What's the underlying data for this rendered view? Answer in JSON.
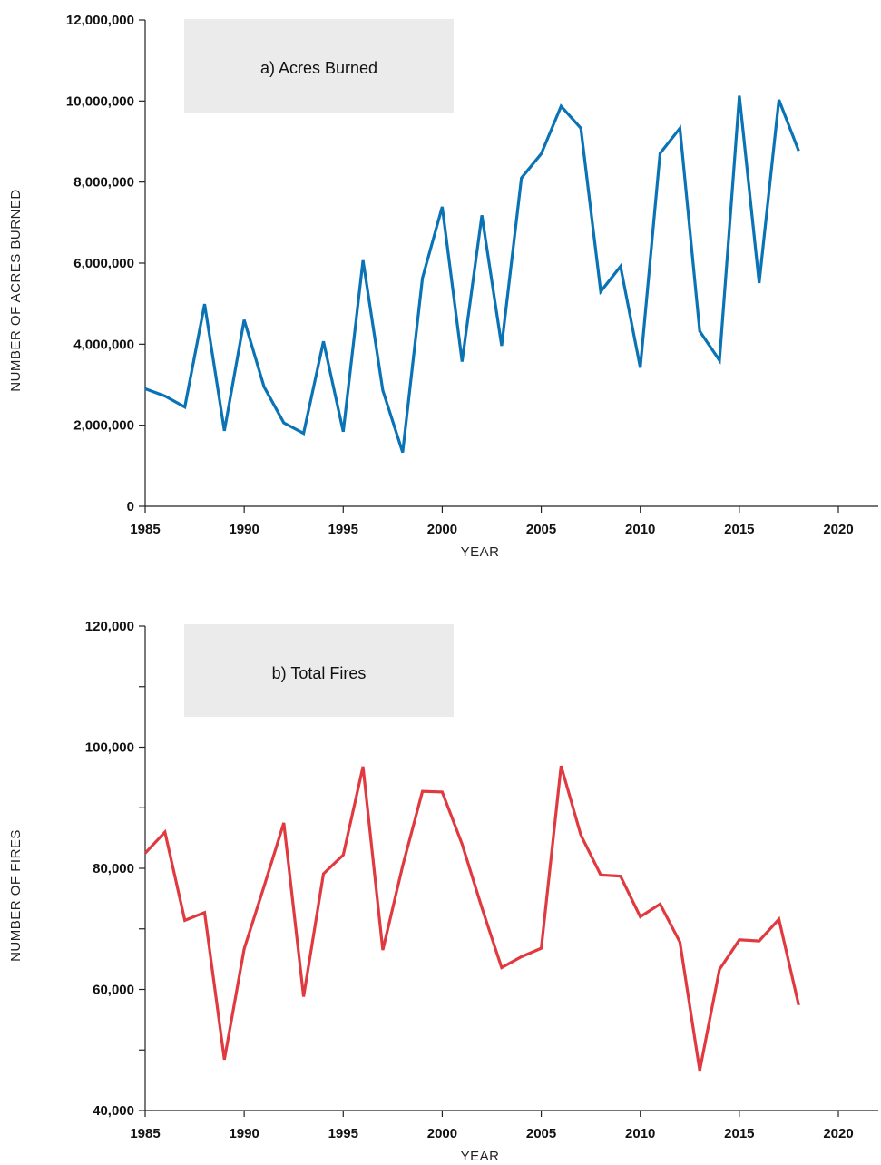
{
  "chart_data": [
    {
      "type": "line",
      "title": "a) Acres Burned",
      "xlabel": "YEAR",
      "ylabel": "NUMBER OF ACRES BURNED",
      "xlim": [
        1985,
        2020
      ],
      "ylim": [
        0,
        12000000
      ],
      "xticks": [
        1985,
        1990,
        1995,
        2000,
        2005,
        2010,
        2015,
        2020
      ],
      "xtick_labels": [
        "1985",
        "1990",
        "1995",
        "2000",
        "2005",
        "2010",
        "2015",
        "2020"
      ],
      "yticks": [
        0,
        2000000,
        4000000,
        6000000,
        8000000,
        10000000,
        12000000
      ],
      "ytick_labels": [
        "0",
        "2,000,000",
        "4,000,000",
        "6,000,000",
        "8,000,000",
        "10,000,000",
        "12,000,000"
      ],
      "grid": false,
      "color": "#0A73B5",
      "series": [
        {
          "x": [
            1985,
            1986,
            1987,
            1988,
            1989,
            1990,
            1991,
            1992,
            1993,
            1994,
            1995,
            1996,
            1997,
            1998,
            1999,
            2000,
            2001,
            2002,
            2003,
            2004,
            2005,
            2006,
            2007,
            2008,
            2009,
            2010,
            2011,
            2012,
            2013,
            2014,
            2015,
            2016,
            2017,
            2018
          ],
          "values": [
            2900000,
            2720000,
            2450000,
            4990000,
            1860000,
            4600000,
            2950000,
            2060000,
            1800000,
            4070000,
            1840000,
            6070000,
            2860000,
            1330000,
            5630000,
            7390000,
            3570000,
            7180000,
            3960000,
            8100000,
            8700000,
            9870000,
            9330000,
            5300000,
            5920000,
            3420000,
            8710000,
            9330000,
            4320000,
            3600000,
            10130000,
            5510000,
            10030000,
            8770000
          ]
        }
      ]
    },
    {
      "type": "line",
      "title": "b) Total Fires",
      "xlabel": "YEAR",
      "ylabel": "NUMBER OF FIRES",
      "xlim": [
        1985,
        2020
      ],
      "ylim": [
        40000,
        120000
      ],
      "xticks": [
        1985,
        1990,
        1995,
        2000,
        2005,
        2010,
        2015,
        2020
      ],
      "xtick_labels": [
        "1985",
        "1990",
        "1995",
        "2000",
        "2005",
        "2010",
        "2015",
        "2020"
      ],
      "yticks": [
        40000,
        60000,
        80000,
        100000,
        120000
      ],
      "ytick_labels": [
        "40,000",
        "60,000",
        "80,000",
        "100,000",
        "120,000"
      ],
      "minor_yticks": [
        50000,
        70000,
        90000,
        110000
      ],
      "grid": false,
      "color": "#E03A40",
      "series": [
        {
          "x": [
            1985,
            1986,
            1987,
            1988,
            1989,
            1990,
            1991,
            1992,
            1993,
            1994,
            1995,
            1996,
            1997,
            1998,
            1999,
            2000,
            2001,
            2002,
            2003,
            2004,
            2005,
            2006,
            2007,
            2008,
            2009,
            2010,
            2011,
            2012,
            2013,
            2014,
            2015,
            2016,
            2017,
            2018
          ],
          "values": [
            82500,
            86000,
            71400,
            72700,
            48400,
            66700,
            77000,
            87500,
            58800,
            79100,
            82200,
            96800,
            66500,
            80400,
            92700,
            92600,
            84000,
            73500,
            63600,
            65400,
            66800,
            96900,
            85500,
            78900,
            78700,
            72000,
            74100,
            67800,
            46600,
            63300,
            68200,
            68000,
            71600,
            57400
          ]
        }
      ]
    }
  ]
}
